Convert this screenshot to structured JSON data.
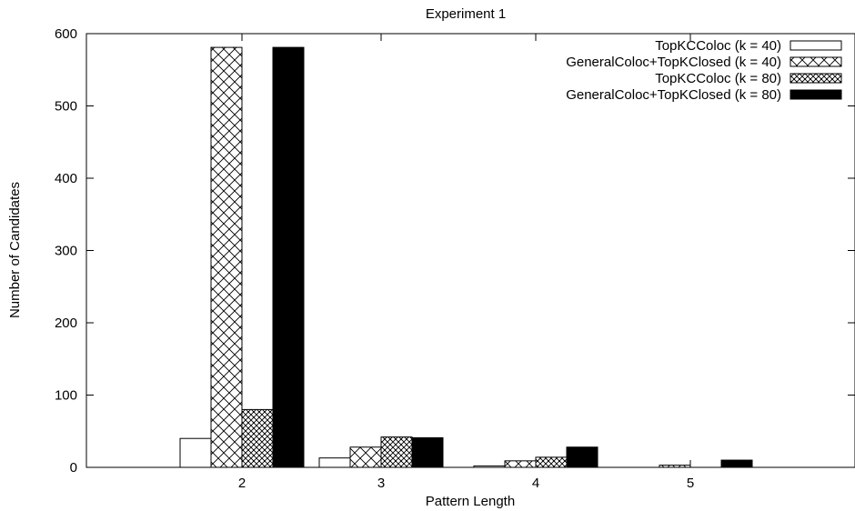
{
  "chart_data": {
    "type": "bar",
    "title": "Experiment 1",
    "xlabel": "Pattern Length",
    "ylabel": "Number of Candidates",
    "categories": [
      "2",
      "3",
      "4",
      "5"
    ],
    "ylim": [
      0,
      600
    ],
    "yticks": [
      0,
      100,
      200,
      300,
      400,
      500,
      600
    ],
    "grid": false,
    "legend_position": "top-right",
    "series": [
      {
        "name": "TopKCColoc (k = 40)",
        "values": [
          40,
          13,
          2,
          0
        ],
        "pattern": "white"
      },
      {
        "name": "GeneralColoc+TopKClosed (k = 40)",
        "values": [
          581,
          28,
          9,
          3
        ],
        "pattern": "crosshatch"
      },
      {
        "name": "TopKCColoc (k = 80)",
        "values": [
          80,
          42,
          14,
          0
        ],
        "pattern": "dense-hatch"
      },
      {
        "name": "GeneralColoc+TopKClosed (k = 80)",
        "values": [
          581,
          41,
          28,
          10
        ],
        "pattern": "black"
      }
    ]
  }
}
